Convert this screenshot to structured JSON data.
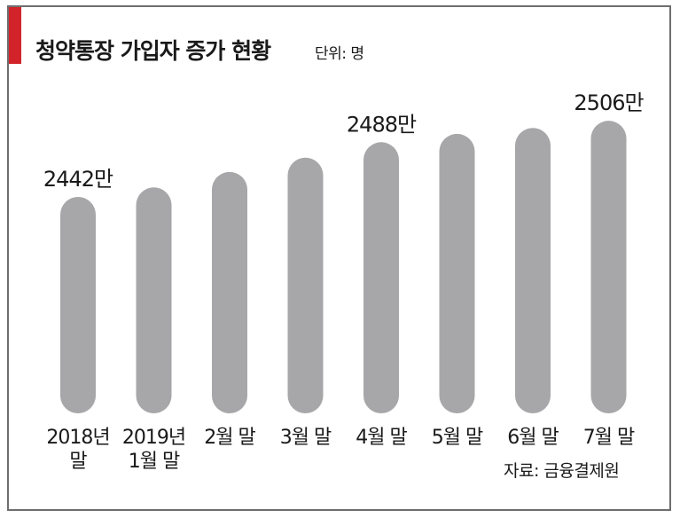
{
  "title": "청약통장 가입자 증가 현황",
  "unit": "단위: 명",
  "source": "자료: 금융결제원",
  "colors": {
    "accent": "#d2232a",
    "bar": "#a7a7a9",
    "text": "#1a1a1a",
    "frame": "#6e6e6e"
  },
  "chart_data": {
    "type": "bar",
    "categories": [
      "2018년\n말",
      "2019년\n1월 말",
      "2월 말",
      "3월 말",
      "4월 말",
      "5월 말",
      "6월 말",
      "7월 말"
    ],
    "values": [
      2442,
      2450,
      2463,
      2475,
      2488,
      2495,
      2500,
      2506
    ],
    "data_labels": [
      "2442만",
      "",
      "",
      "",
      "2488만",
      "",
      "",
      "2506만"
    ],
    "ylim": [
      2260,
      2530
    ],
    "grid": false,
    "legend": "none"
  }
}
